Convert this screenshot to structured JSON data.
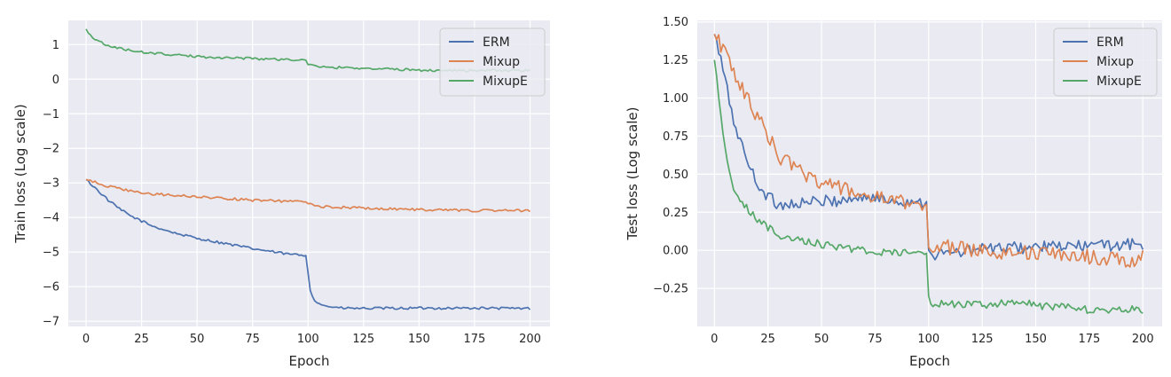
{
  "chart_data": [
    {
      "type": "line",
      "xlabel": "Epoch",
      "ylabel": "Train loss (Log scale)",
      "xlim": [
        -8,
        209
      ],
      "ylim": [
        -7.15,
        1.7
      ],
      "xticks": [
        0,
        25,
        50,
        75,
        100,
        125,
        150,
        175,
        200
      ],
      "yticks": [
        -7,
        -6,
        -5,
        -4,
        -3,
        -2,
        -1,
        0,
        1
      ],
      "ytick_labels": [
        "−7",
        "−6",
        "−5",
        "−4",
        "−3",
        "−2",
        "−1",
        "0",
        "1"
      ],
      "grid": true,
      "legend_position": "top-right",
      "series": [
        {
          "name": "ERM",
          "color": "#4c72b0",
          "points": [
            [
              0,
              -2.9
            ],
            [
              5,
              -3.2
            ],
            [
              10,
              -3.5
            ],
            [
              15,
              -3.75
            ],
            [
              20,
              -3.95
            ],
            [
              25,
              -4.1
            ],
            [
              30,
              -4.25
            ],
            [
              40,
              -4.45
            ],
            [
              50,
              -4.6
            ],
            [
              60,
              -4.72
            ],
            [
              75,
              -4.9
            ],
            [
              90,
              -5.05
            ],
            [
              99,
              -5.1
            ],
            [
              100,
              -5.6
            ],
            [
              101,
              -6.1
            ],
            [
              103,
              -6.4
            ],
            [
              107,
              -6.55
            ],
            [
              115,
              -6.62
            ],
            [
              125,
              -6.63
            ],
            [
              150,
              -6.62
            ],
            [
              175,
              -6.62
            ],
            [
              200,
              -6.63
            ]
          ]
        },
        {
          "name": "Mixup",
          "color": "#dd8452",
          "points": [
            [
              0,
              -2.9
            ],
            [
              10,
              -3.1
            ],
            [
              25,
              -3.3
            ],
            [
              50,
              -3.4
            ],
            [
              75,
              -3.5
            ],
            [
              99,
              -3.55
            ],
            [
              100,
              -3.6
            ],
            [
              105,
              -3.68
            ],
            [
              125,
              -3.73
            ],
            [
              150,
              -3.77
            ],
            [
              175,
              -3.8
            ],
            [
              200,
              -3.8
            ]
          ]
        },
        {
          "name": "MixupE",
          "color": "#55a868",
          "points": [
            [
              0,
              1.45
            ],
            [
              3,
              1.2
            ],
            [
              10,
              0.95
            ],
            [
              25,
              0.78
            ],
            [
              50,
              0.65
            ],
            [
              75,
              0.6
            ],
            [
              99,
              0.55
            ],
            [
              100,
              0.42
            ],
            [
              105,
              0.35
            ],
            [
              125,
              0.32
            ],
            [
              150,
              0.26
            ],
            [
              175,
              0.25
            ],
            [
              200,
              0.25
            ]
          ]
        }
      ]
    },
    {
      "type": "line",
      "xlabel": "Epoch",
      "ylabel": "Test loss (Log scale)",
      "xlim": [
        -8,
        209
      ],
      "ylim": [
        -0.5,
        1.51
      ],
      "xticks": [
        0,
        25,
        50,
        75,
        100,
        125,
        150,
        175,
        200
      ],
      "yticks": [
        -0.25,
        0,
        0.25,
        0.5,
        0.75,
        1,
        1.25,
        1.5
      ],
      "ytick_labels": [
        "−0.25",
        "0.00",
        "0.25",
        "0.50",
        "0.75",
        "1.00",
        "1.25",
        "1.50"
      ],
      "grid": true,
      "legend_position": "top-right",
      "series": [
        {
          "name": "ERM",
          "color": "#4c72b0",
          "points": [
            [
              0,
              1.42
            ],
            [
              3,
              1.25
            ],
            [
              6,
              1.05
            ],
            [
              9,
              0.85
            ],
            [
              12,
              0.72
            ],
            [
              15,
              0.6
            ],
            [
              18,
              0.5
            ],
            [
              21,
              0.42
            ],
            [
              24,
              0.37
            ],
            [
              27,
              0.33
            ],
            [
              30,
              0.3
            ],
            [
              40,
              0.31
            ],
            [
              50,
              0.32
            ],
            [
              60,
              0.33
            ],
            [
              70,
              0.35
            ],
            [
              80,
              0.33
            ],
            [
              90,
              0.32
            ],
            [
              99,
              0.32
            ],
            [
              100,
              0.0
            ],
            [
              101,
              -0.03
            ],
            [
              110,
              -0.02
            ],
            [
              125,
              0.01
            ],
            [
              150,
              0.02
            ],
            [
              175,
              0.03
            ],
            [
              200,
              0.04
            ]
          ],
          "noise": 0.04
        },
        {
          "name": "Mixup",
          "color": "#dd8452",
          "points": [
            [
              0,
              1.42
            ],
            [
              5,
              1.3
            ],
            [
              10,
              1.15
            ],
            [
              15,
              1.0
            ],
            [
              20,
              0.88
            ],
            [
              25,
              0.75
            ],
            [
              30,
              0.62
            ],
            [
              40,
              0.52
            ],
            [
              50,
              0.45
            ],
            [
              60,
              0.4
            ],
            [
              70,
              0.36
            ],
            [
              80,
              0.33
            ],
            [
              90,
              0.31
            ],
            [
              99,
              0.3
            ],
            [
              100,
              0.02
            ],
            [
              110,
              0.02
            ],
            [
              125,
              0.0
            ],
            [
              150,
              -0.02
            ],
            [
              175,
              -0.04
            ],
            [
              198,
              -0.08
            ],
            [
              200,
              0.05
            ]
          ],
          "noise": 0.05
        },
        {
          "name": "MixupE",
          "color": "#55a868",
          "points": [
            [
              0,
              1.25
            ],
            [
              2,
              1.0
            ],
            [
              4,
              0.75
            ],
            [
              6,
              0.57
            ],
            [
              8,
              0.45
            ],
            [
              10,
              0.38
            ],
            [
              15,
              0.28
            ],
            [
              20,
              0.2
            ],
            [
              25,
              0.15
            ],
            [
              30,
              0.1
            ],
            [
              40,
              0.07
            ],
            [
              50,
              0.04
            ],
            [
              60,
              0.02
            ],
            [
              75,
              -0.01
            ],
            [
              90,
              -0.02
            ],
            [
              99,
              -0.02
            ],
            [
              100,
              -0.3
            ],
            [
              101,
              -0.35
            ],
            [
              125,
              -0.36
            ],
            [
              145,
              -0.34
            ],
            [
              150,
              -0.36
            ],
            [
              175,
              -0.39
            ],
            [
              200,
              -0.39
            ]
          ],
          "noise": 0.025
        }
      ]
    }
  ]
}
